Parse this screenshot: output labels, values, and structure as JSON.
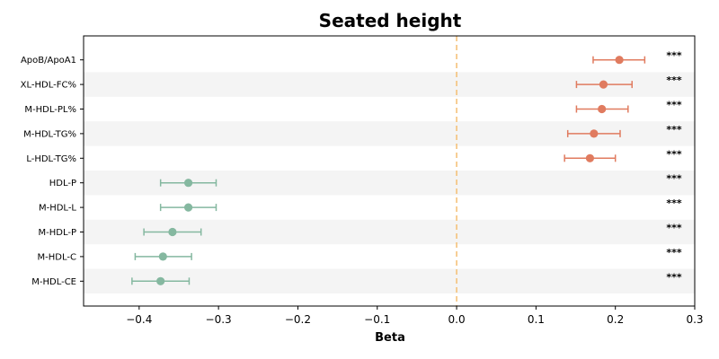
{
  "chart_data": {
    "type": "scatter",
    "title": "Seated height",
    "xlabel": "Beta",
    "xlim": [
      -0.47,
      0.3
    ],
    "xticks": [
      -0.4,
      -0.3,
      -0.2,
      -0.1,
      0.0,
      0.1,
      0.2,
      0.3
    ],
    "xtick_labels": [
      "−0.4",
      "−0.3",
      "−0.2",
      "−0.1",
      "0.0",
      "0.1",
      "0.2",
      "0.3"
    ],
    "reference_line": 0,
    "grid": false,
    "row_shading": "alternating",
    "colors": {
      "positive": "#e07b5f",
      "negative": "#85b8a0",
      "reference": "#f5c27a",
      "shade": "#f4f4f4"
    },
    "rows": [
      {
        "label": "ApoB/ApoA1",
        "beta": 0.205,
        "ci_low": 0.172,
        "ci_high": 0.237,
        "sig": "***"
      },
      {
        "label": "XL-HDL-FC%",
        "beta": 0.185,
        "ci_low": 0.151,
        "ci_high": 0.221,
        "sig": "***"
      },
      {
        "label": "M-HDL-PL%",
        "beta": 0.183,
        "ci_low": 0.151,
        "ci_high": 0.216,
        "sig": "***"
      },
      {
        "label": "M-HDL-TG%",
        "beta": 0.173,
        "ci_low": 0.14,
        "ci_high": 0.206,
        "sig": "***"
      },
      {
        "label": "L-HDL-TG%",
        "beta": 0.168,
        "ci_low": 0.136,
        "ci_high": 0.2,
        "sig": "***"
      },
      {
        "label": "HDL-P",
        "beta": -0.338,
        "ci_low": -0.373,
        "ci_high": -0.303,
        "sig": "***"
      },
      {
        "label": "M-HDL-L",
        "beta": -0.338,
        "ci_low": -0.373,
        "ci_high": -0.303,
        "sig": "***"
      },
      {
        "label": "M-HDL-P",
        "beta": -0.358,
        "ci_low": -0.394,
        "ci_high": -0.322,
        "sig": "***"
      },
      {
        "label": "M-HDL-C",
        "beta": -0.37,
        "ci_low": -0.405,
        "ci_high": -0.334,
        "sig": "***"
      },
      {
        "label": "M-HDL-CE",
        "beta": -0.373,
        "ci_low": -0.409,
        "ci_high": -0.337,
        "sig": "***"
      }
    ]
  }
}
